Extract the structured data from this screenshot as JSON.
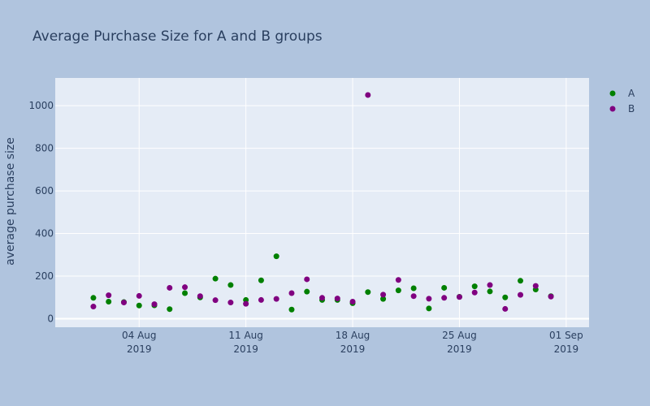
{
  "chart_data": {
    "type": "scatter",
    "title": "Average Purchase Size for A and B groups",
    "xlabel": "",
    "ylabel": "average purchase size",
    "x_axis_type": "date",
    "xlim": [
      "2019-07-29T12:00",
      "2019-09-02T12:00"
    ],
    "ylim": [
      -40,
      1130
    ],
    "y_ticks": [
      0,
      200,
      400,
      600,
      800,
      1000
    ],
    "x_ticks": [
      {
        "date": "2019-08-04",
        "line1": "04 Aug",
        "line2": "2019"
      },
      {
        "date": "2019-08-11",
        "line1": "11 Aug",
        "line2": "2019"
      },
      {
        "date": "2019-08-18",
        "line1": "18 Aug",
        "line2": "2019"
      },
      {
        "date": "2019-08-25",
        "line1": "25 Aug",
        "line2": "2019"
      },
      {
        "date": "2019-09-01",
        "line1": "01 Sep",
        "line2": "2019"
      }
    ],
    "grid": true,
    "legend_position": "top-right",
    "colors": {
      "paper": "#b0c4de",
      "plot": "#e5ecf6",
      "grid": "#ffffff",
      "A": "#008000",
      "B": "#800080"
    },
    "series": [
      {
        "name": "A",
        "color": "#008000",
        "points": [
          [
            "2019-08-01",
            98
          ],
          [
            "2019-08-02",
            80
          ],
          [
            "2019-08-03",
            78
          ],
          [
            "2019-08-04",
            62
          ],
          [
            "2019-08-05",
            63
          ],
          [
            "2019-08-06",
            45
          ],
          [
            "2019-08-07",
            120
          ],
          [
            "2019-08-08",
            100
          ],
          [
            "2019-08-09",
            188
          ],
          [
            "2019-08-10",
            158
          ],
          [
            "2019-08-11",
            88
          ],
          [
            "2019-08-12",
            180
          ],
          [
            "2019-08-13",
            293
          ],
          [
            "2019-08-14",
            43
          ],
          [
            "2019-08-15",
            127
          ],
          [
            "2019-08-16",
            88
          ],
          [
            "2019-08-17",
            88
          ],
          [
            "2019-08-18",
            73
          ],
          [
            "2019-08-19",
            125
          ],
          [
            "2019-08-20",
            93
          ],
          [
            "2019-08-21",
            133
          ],
          [
            "2019-08-22",
            143
          ],
          [
            "2019-08-23",
            48
          ],
          [
            "2019-08-24",
            145
          ],
          [
            "2019-08-25",
            103
          ],
          [
            "2019-08-26",
            152
          ],
          [
            "2019-08-27",
            128
          ],
          [
            "2019-08-28",
            100
          ],
          [
            "2019-08-29",
            178
          ],
          [
            "2019-08-30",
            137
          ],
          [
            "2019-08-31",
            106
          ]
        ]
      },
      {
        "name": "B",
        "color": "#800080",
        "points": [
          [
            "2019-08-01",
            57
          ],
          [
            "2019-08-02",
            110
          ],
          [
            "2019-08-03",
            76
          ],
          [
            "2019-08-04",
            107
          ],
          [
            "2019-08-05",
            68
          ],
          [
            "2019-08-06",
            145
          ],
          [
            "2019-08-07",
            148
          ],
          [
            "2019-08-08",
            106
          ],
          [
            "2019-08-09",
            87
          ],
          [
            "2019-08-10",
            76
          ],
          [
            "2019-08-11",
            70
          ],
          [
            "2019-08-12",
            88
          ],
          [
            "2019-08-13",
            93
          ],
          [
            "2019-08-14",
            120
          ],
          [
            "2019-08-15",
            185
          ],
          [
            "2019-08-16",
            98
          ],
          [
            "2019-08-17",
            95
          ],
          [
            "2019-08-18",
            80
          ],
          [
            "2019-08-19",
            1050
          ],
          [
            "2019-08-20",
            113
          ],
          [
            "2019-08-21",
            182
          ],
          [
            "2019-08-22",
            106
          ],
          [
            "2019-08-23",
            94
          ],
          [
            "2019-08-24",
            98
          ],
          [
            "2019-08-25",
            102
          ],
          [
            "2019-08-26",
            123
          ],
          [
            "2019-08-27",
            158
          ],
          [
            "2019-08-28",
            46
          ],
          [
            "2019-08-29",
            112
          ],
          [
            "2019-08-30",
            154
          ],
          [
            "2019-08-31",
            104
          ]
        ]
      }
    ]
  }
}
